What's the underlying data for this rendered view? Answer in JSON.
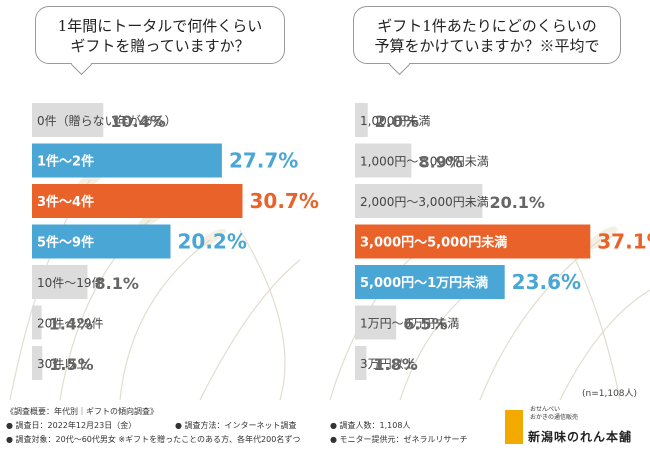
{
  "chart_data": [
    {
      "type": "bar",
      "orientation": "horizontal",
      "title": "1年間にトータルで何件くらい\nギフトを贈っていますか？",
      "categories": [
        "0件（贈らない年がある）",
        "1件〜2件",
        "3件〜4件",
        "5件〜9件",
        "10件〜19件",
        "20件〜29件",
        "30件以上"
      ],
      "values": [
        10.4,
        27.7,
        30.7,
        20.2,
        8.1,
        1.4,
        1.5
      ],
      "value_labels": [
        "10.4%",
        "27.7%",
        "30.7%",
        "20.2%",
        "8.1%",
        "1.4%",
        "1.5%"
      ],
      "highlight": [
        "none",
        "blue",
        "orange",
        "blue",
        "none",
        "none",
        "none"
      ],
      "xlim": [
        0,
        35
      ]
    },
    {
      "type": "bar",
      "orientation": "horizontal",
      "title": "ギフト1件あたりにどのくらいの\n予算をかけていますか？※平均で",
      "categories": [
        "1,000円未満",
        "1,000円〜2,000円未満",
        "2,000円〜3,000円未満",
        "3,000円〜5,000円未満",
        "5,000円〜1万円未満",
        "1万円〜3万円未満",
        "3万円以上"
      ],
      "values": [
        2.0,
        8.9,
        20.1,
        37.1,
        23.6,
        6.5,
        1.8
      ],
      "value_labels": [
        "2.0%",
        "8.9%",
        "20.1%",
        "37.1%",
        "23.6%",
        "6.5%",
        "1.8%"
      ],
      "highlight": [
        "none",
        "none",
        "none",
        "orange",
        "blue",
        "none",
        "none"
      ],
      "xlim": [
        0,
        41
      ]
    }
  ],
  "colors": {
    "orange": "#e8622a",
    "blue": "#4aa6d4",
    "gray": "#dcdcdc",
    "gray_text": "#444444",
    "value_gray": "#666666"
  },
  "note": "(n=1,108人)",
  "footer": {
    "title": "《調査概要：年代別｜ギフトの傾向調査》",
    "date": "● 調査日：2022年12月23日（金）",
    "method": "● 調査方法：インターネット調査",
    "count": "● 調査人数：1,108人",
    "target": "● 調査対象：20代〜60代男女 ※ギフトを贈ったことのある方、各年代200名ずつ",
    "monitor": "● モニター提供元：ゼネラルリサーチ"
  },
  "logo": {
    "small": "おせんべい\nおかきの通信販売",
    "main": "新潟味のれん本舗"
  }
}
